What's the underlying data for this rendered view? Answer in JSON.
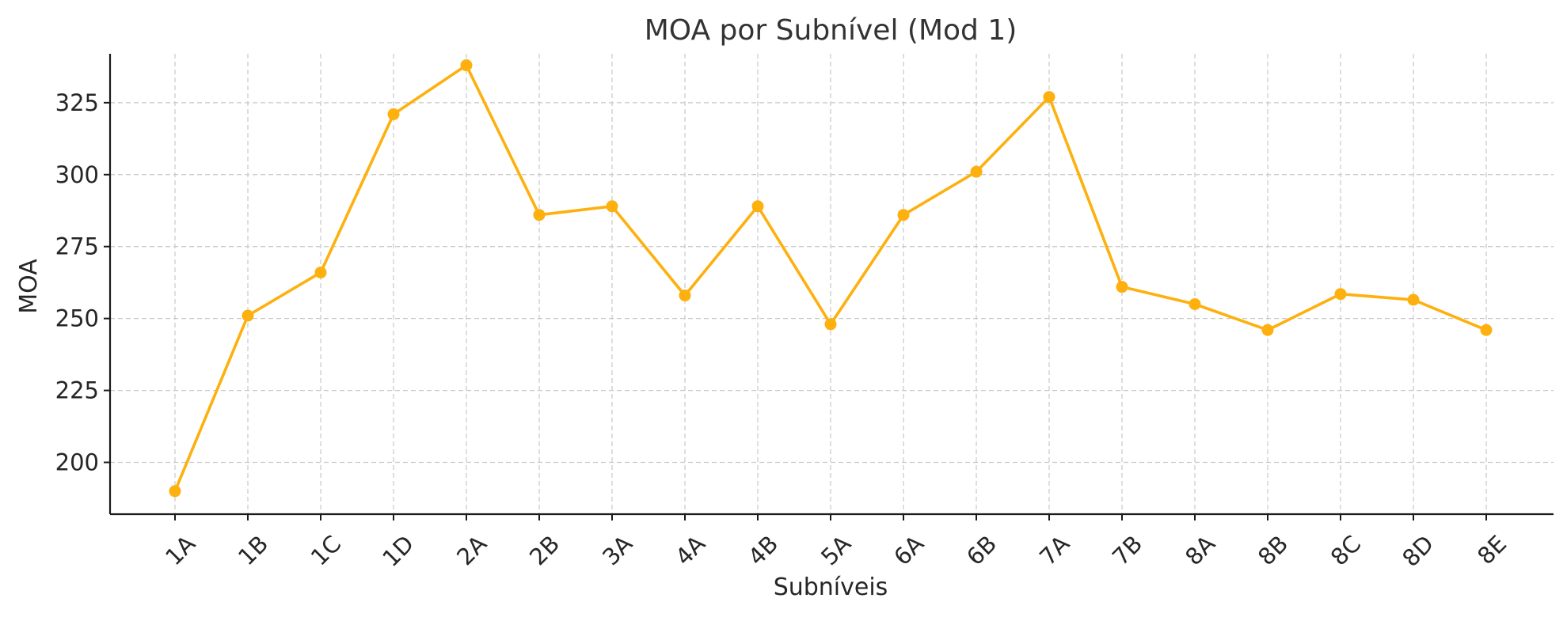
{
  "chart_data": {
    "type": "line",
    "title": "MOA por Subnível (Mod 1)",
    "xlabel": "Subníveis",
    "ylabel": "MOA",
    "categories": [
      "1A",
      "1B",
      "1C",
      "1D",
      "2A",
      "2B",
      "3A",
      "4A",
      "4B",
      "5A",
      "6A",
      "6B",
      "7A",
      "7B",
      "8A",
      "8B",
      "8C",
      "8D",
      "8E"
    ],
    "series": [
      {
        "values": [
          190,
          251,
          266,
          321,
          338,
          286,
          289,
          258,
          289,
          248,
          286,
          301,
          327,
          261,
          255,
          246,
          258.5,
          256.5,
          246
        ],
        "color": "#FDB00E",
        "marker": "circle"
      }
    ],
    "ylim": [
      182,
      342
    ],
    "yticks": [
      200,
      225,
      250,
      275,
      300,
      325
    ],
    "grid": true,
    "x_tick_rotation": 45
  }
}
